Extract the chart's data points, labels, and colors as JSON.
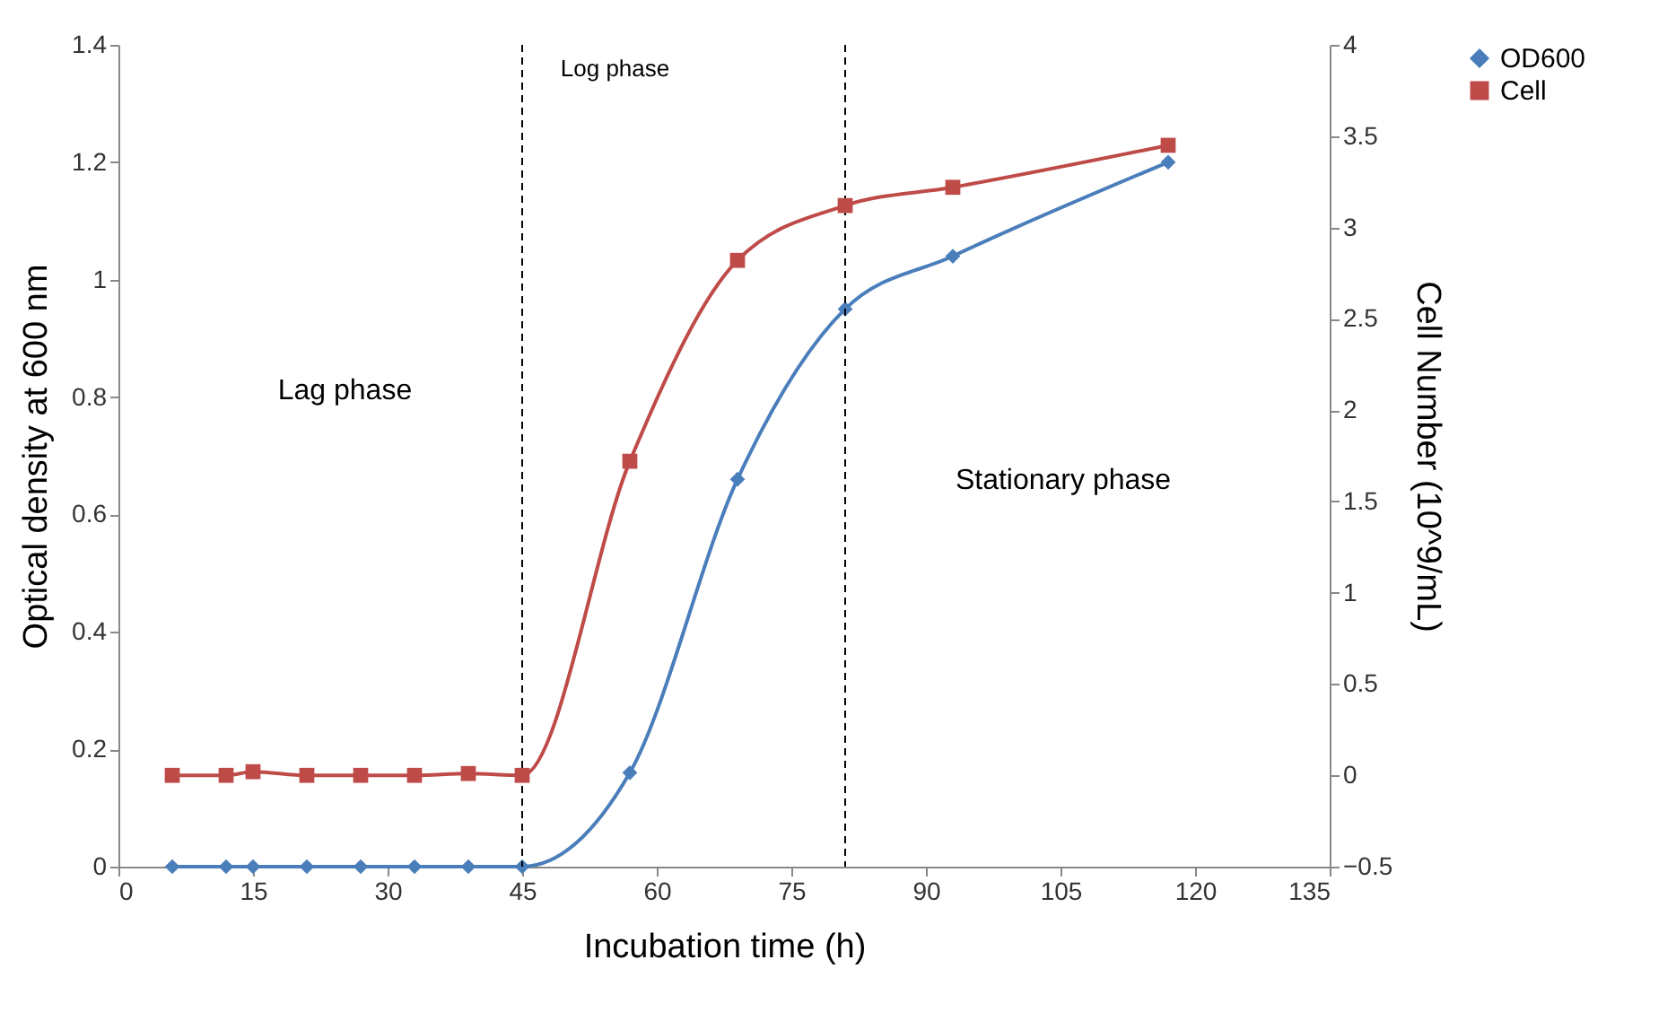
{
  "chart_data": {
    "type": "line",
    "xlabel": "Incubation time (h)",
    "ylabel": "Optical density at 600 nm",
    "y2label": "Cell Number (10^9/mL)",
    "x": [
      6,
      12,
      15,
      21,
      27,
      33,
      39,
      45,
      57,
      69,
      81,
      93,
      117
    ],
    "series": [
      {
        "name": "OD600",
        "color": "#4a7ebb",
        "marker": "diamond",
        "values": [
          0,
          0,
          0,
          0,
          0,
          0,
          0,
          0,
          0.16,
          0.66,
          0.95,
          1.04,
          1.2
        ]
      },
      {
        "name": "Cell",
        "color": "#be4b48",
        "marker": "square",
        "axis": "y2",
        "values": [
          0,
          0,
          0.02,
          0,
          0,
          0,
          0.01,
          0,
          1.72,
          2.82,
          3.12,
          3.22,
          3.45
        ]
      }
    ],
    "xlim": [
      0,
      135
    ],
    "xticks": [
      0,
      15,
      30,
      45,
      60,
      75,
      90,
      105,
      120,
      135
    ],
    "ylim": [
      0,
      1.4
    ],
    "yticks": [
      0,
      0.2,
      0.4,
      0.6,
      0.8,
      1,
      1.2,
      1.4
    ],
    "y2lim": [
      -0.5,
      4
    ],
    "y2ticks": [
      -0.5,
      0,
      0.5,
      1,
      1.5,
      2,
      2.5,
      3,
      3.5,
      4
    ],
    "ref_lines": [
      {
        "axis": "x",
        "value": 45,
        "color": "#000000",
        "line_style": "dashed"
      },
      {
        "axis": "x",
        "value": 81,
        "color": "#000000",
        "line_style": "dashed"
      }
    ],
    "annotations": [
      "Lag phase",
      "Log phase",
      "Stationary phase"
    ],
    "legend": "right",
    "grid": false,
    "line_style": "solid"
  }
}
